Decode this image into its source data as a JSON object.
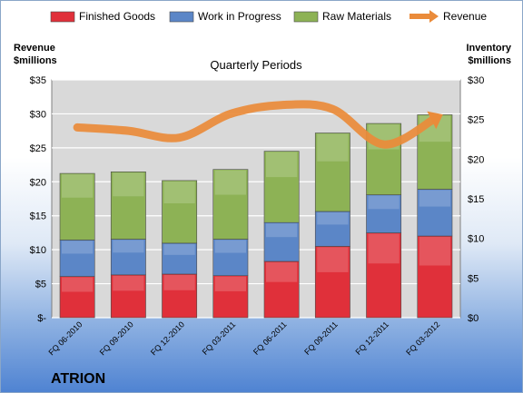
{
  "chart_data": {
    "type": "bar",
    "title": "Quarterly Periods",
    "company": "ATRION",
    "left_axis_title": [
      "Revenue",
      "$millions"
    ],
    "right_axis_title": [
      "Inventory",
      "$millions"
    ],
    "categories": [
      "FQ 06-2010",
      "FQ 09-2010",
      "FQ 12-2010",
      "FQ 03-2011",
      "FQ 06-2011",
      "FQ 09-2011",
      "FQ 12-2011",
      "FQ 03-2012"
    ],
    "stacked": true,
    "series": [
      {
        "name": "Finished Goods",
        "type": "bar",
        "axis": "right",
        "color": "#e0303a",
        "values": [
          5.2,
          5.4,
          5.5,
          5.3,
          7.1,
          9.0,
          10.7,
          10.3
        ]
      },
      {
        "name": "Work in Progress",
        "type": "bar",
        "axis": "right",
        "color": "#5b86c7",
        "values": [
          4.6,
          4.5,
          3.9,
          4.6,
          4.9,
          4.4,
          4.8,
          5.9
        ]
      },
      {
        "name": "Raw Materials",
        "type": "bar",
        "axis": "right",
        "color": "#8db255",
        "values": [
          8.4,
          8.5,
          7.9,
          8.8,
          9.0,
          9.9,
          9.0,
          9.4
        ]
      },
      {
        "name": "Revenue",
        "type": "line",
        "axis": "left",
        "color": "#ea8b3a",
        "values": [
          28.0,
          27.5,
          26.5,
          30.0,
          31.3,
          30.7,
          25.5,
          29.3
        ]
      }
    ],
    "left_axis": {
      "ylim": [
        0,
        35
      ],
      "ticks": [
        "$-",
        "$5",
        "$10",
        "$15",
        "$20",
        "$25",
        "$30",
        "$35"
      ]
    },
    "right_axis": {
      "ylim": [
        0,
        30
      ],
      "ticks": [
        "$0",
        "$5",
        "$10",
        "$15",
        "$20",
        "$25",
        "$30"
      ]
    },
    "grid": true,
    "legend_position": "top"
  }
}
